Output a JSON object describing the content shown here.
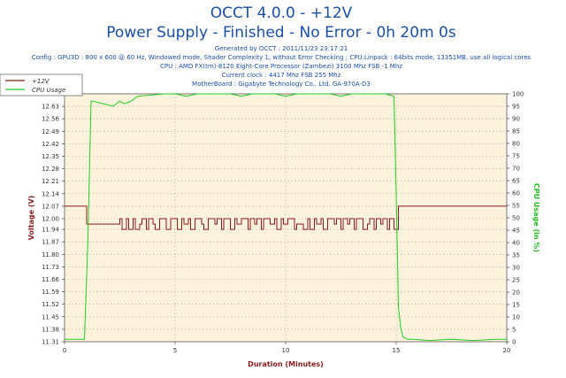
{
  "header": {
    "title1": "OCCT 4.0.0 - +12V",
    "title2": "Power Supply - Finished - No Error - 0h 20m 0s",
    "generated": "Generated by OCCT : 2011/11/23 23:17:21",
    "config": "Config : GPU3D : 800 x 600 @ 60 Hz, Windowed mode, Shader Complexity 1, without Error Checking ; CPU:Linpack : 64bits mode, 13351MB, use all logical cores",
    "cpu": "CPU : AMD FX(tm)-8120 Eight-Core Processor (Zambezi) 3100 Mhz FSB -1 Mhz",
    "clock": "Current clock : 4417 Mhz FSB 255 Mhz",
    "motherboard": "MotherBoard : Gigabyte Technology Co., Ltd. GA-970A-D3"
  },
  "colors": {
    "voltage": "#8b1a1a",
    "cpu": "#22cc22",
    "plot_bg": "#fdf2dc",
    "grid": "#888888",
    "title": "#1a4fa8"
  },
  "chart_data": {
    "type": "line",
    "xlabel": "Duration (Minutes)",
    "ylabel": "Voltage (V)",
    "y2label": "CPU Usage (in %)",
    "xlim": [
      0,
      20
    ],
    "ylim": [
      11.31,
      12.7
    ],
    "y2lim": [
      0,
      100
    ],
    "x_ticks": [
      0,
      5,
      10,
      15,
      20
    ],
    "y_ticks": [
      11.31,
      11.38,
      11.45,
      11.52,
      11.59,
      11.66,
      11.73,
      11.8,
      11.87,
      11.94,
      12.0,
      12.07,
      12.14,
      12.21,
      12.28,
      12.35,
      12.42,
      12.49,
      12.56,
      12.63,
      12.7
    ],
    "y2_ticks": [
      0,
      5,
      10,
      15,
      20,
      25,
      30,
      35,
      40,
      45,
      50,
      55,
      60,
      65,
      70,
      75,
      80,
      85,
      90,
      95,
      100
    ],
    "grid": true,
    "legend_position": "top-left",
    "series": [
      {
        "name": "+12V",
        "axis": "left",
        "step": true,
        "x": [
          0,
          1.0,
          1.0,
          2.3,
          2.5,
          2.6,
          2.8,
          2.9,
          3.1,
          3.2,
          3.4,
          3.5,
          3.7,
          3.8,
          4.0,
          4.1,
          4.3,
          4.4,
          4.6,
          4.8,
          5.0,
          5.1,
          5.3,
          5.4,
          5.6,
          5.7,
          5.9,
          6.0,
          6.2,
          6.3,
          6.5,
          6.6,
          6.8,
          6.9,
          7.1,
          7.2,
          7.4,
          7.5,
          7.7,
          7.8,
          8.0,
          8.1,
          8.3,
          8.4,
          8.6,
          8.7,
          8.9,
          9.0,
          9.2,
          9.3,
          9.5,
          9.6,
          9.8,
          9.9,
          10.1,
          10.2,
          10.4,
          10.5,
          10.7,
          10.8,
          11.0,
          11.1,
          11.3,
          11.4,
          11.6,
          11.7,
          11.9,
          12.0,
          12.2,
          12.3,
          12.5,
          12.6,
          12.8,
          12.9,
          13.1,
          13.2,
          13.4,
          13.5,
          13.7,
          13.8,
          14.0,
          14.1,
          14.3,
          14.4,
          14.6,
          14.7,
          14.9,
          15.1,
          15.1,
          20
        ],
        "y": [
          12.07,
          12.07,
          11.97,
          11.97,
          12.0,
          11.94,
          12.0,
          11.94,
          12.0,
          11.94,
          11.97,
          12.0,
          11.94,
          12.0,
          11.97,
          11.94,
          12.0,
          12.0,
          11.94,
          12.0,
          12.0,
          11.94,
          12.0,
          11.97,
          12.0,
          11.94,
          12.0,
          12.0,
          11.97,
          11.94,
          12.0,
          12.0,
          11.97,
          12.0,
          11.94,
          12.0,
          12.0,
          11.94,
          12.0,
          11.97,
          12.0,
          12.0,
          11.94,
          12.0,
          11.97,
          12.0,
          11.94,
          12.0,
          12.0,
          11.97,
          12.0,
          11.94,
          12.0,
          11.97,
          12.0,
          12.0,
          11.94,
          11.97,
          11.97,
          11.94,
          12.0,
          11.94,
          12.0,
          11.97,
          12.0,
          11.94,
          12.0,
          12.0,
          11.97,
          12.0,
          11.94,
          12.0,
          11.97,
          12.0,
          11.94,
          12.0,
          12.0,
          11.94,
          11.97,
          12.0,
          11.94,
          12.0,
          11.97,
          12.0,
          11.94,
          12.0,
          11.94,
          11.97,
          12.07,
          12.07
        ]
      },
      {
        "name": "CPU Usage",
        "axis": "right",
        "step": false,
        "x": [
          0,
          0.4,
          0.9,
          1.05,
          1.2,
          1.3,
          2.2,
          2.5,
          2.7,
          3.0,
          3.3,
          4.5,
          5.0,
          5.5,
          6.0,
          6.5,
          7.0,
          7.5,
          8.0,
          8.5,
          9.0,
          9.5,
          10.0,
          10.5,
          11.0,
          11.5,
          12.0,
          12.5,
          13.0,
          13.5,
          14.0,
          14.5,
          14.9,
          15.0,
          15.1,
          15.2,
          15.3,
          15.5,
          15.8,
          16.5,
          17.5,
          18.5,
          19.5,
          20.0
        ],
        "y": [
          1,
          1,
          1,
          40,
          97,
          97,
          95,
          97,
          96,
          97,
          99,
          100,
          100,
          99,
          100,
          100,
          100,
          100,
          99,
          100,
          100,
          100,
          99,
          100,
          100,
          100,
          100,
          99,
          100,
          100,
          100,
          100,
          99,
          60,
          14,
          6,
          2,
          1,
          1,
          0.5,
          1,
          0.5,
          1,
          1
        ]
      }
    ]
  }
}
